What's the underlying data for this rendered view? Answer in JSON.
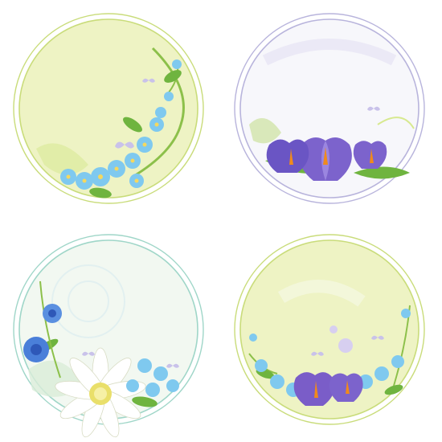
{
  "badges": [
    {
      "theme": "forget-me-not",
      "bg": "#eef3c4",
      "ring": "#c9dc7a",
      "accent": "#7fc6ea"
    },
    {
      "theme": "crocus",
      "bg": "#f7f7fb",
      "ring": "#b8b4dc",
      "accent": "#6a55c4"
    },
    {
      "theme": "cornflower-and-daisy",
      "bg": "#f2f8f1",
      "ring": "#9fd6c8",
      "accent": "#4a7fd9"
    },
    {
      "theme": "crocus-and-forget-me-not",
      "bg": "#eef3c4",
      "ring": "#c9dc7a",
      "accent": "#7a5dc8"
    }
  ],
  "colors": {
    "forget_me_not": "#7fc9ef",
    "forget_me_not_center": "#f4d860",
    "crocus_petal": "#7c63cc",
    "crocus_stamen": "#f08a1c",
    "leaf": "#6fb43f",
    "stem": "#8cc04a",
    "butterfly": "#c9c2ea"
  }
}
